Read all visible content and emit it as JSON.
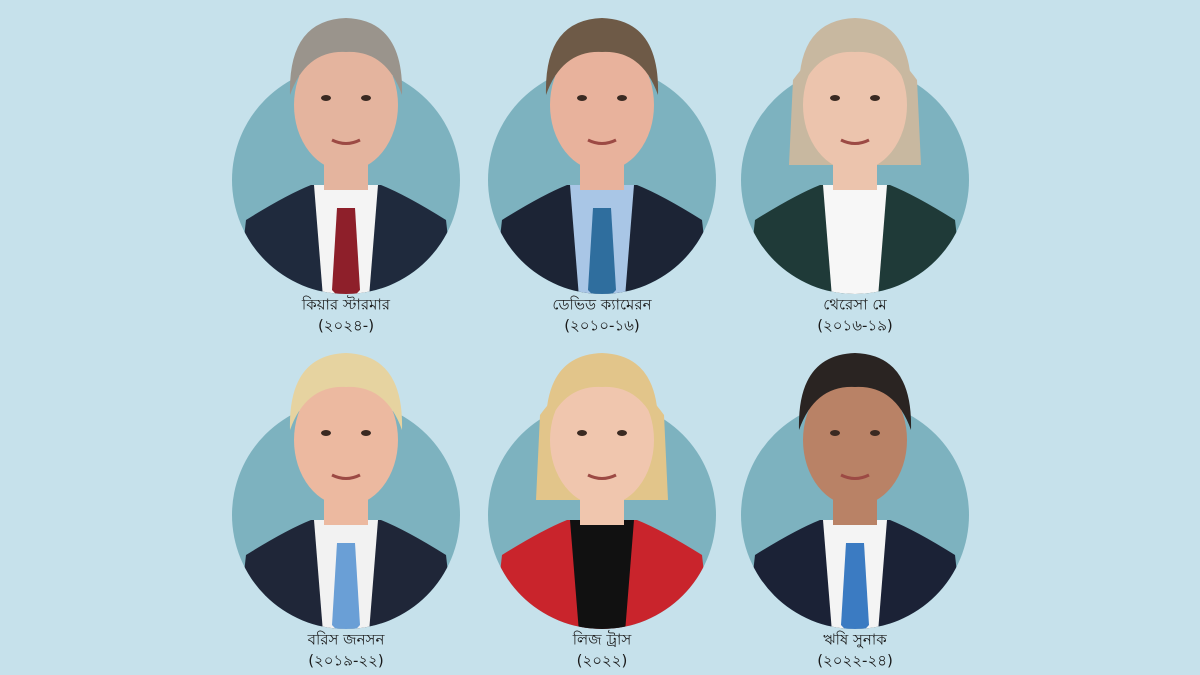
{
  "people": [
    {
      "name": "কিয়ার স্টারমার",
      "years": "(২০২৪-)"
    },
    {
      "name": "ডেভিড ক্যামেরন",
      "years": "(২০১০-১৬)"
    },
    {
      "name": "থেরেসা মে",
      "years": "(২০১৬-১৯)"
    },
    {
      "name": "বরিস জনসন",
      "years": "(২০১৯-২২)"
    },
    {
      "name": "লিজ ট্রাস",
      "years": "(২০২২)"
    },
    {
      "name": "ঋষি সুনাক",
      "years": "(২০২২-২৪)"
    }
  ]
}
